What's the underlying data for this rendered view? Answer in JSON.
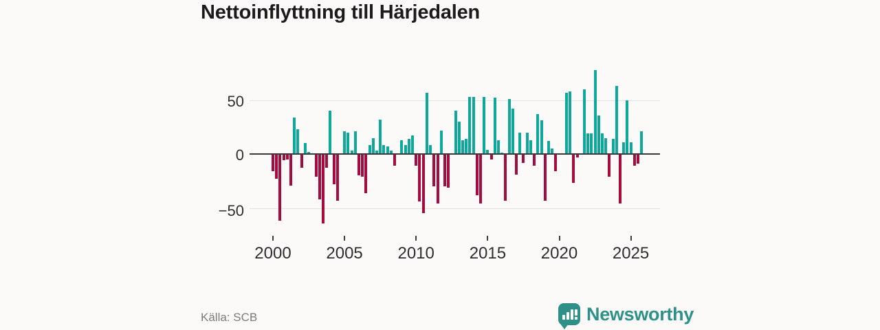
{
  "title": "Nettoinflyttning till Härjedalen",
  "source": "Källa: SCB",
  "logo": {
    "text": "Newsworthy",
    "icon": "bar-chart-speech-bubble-icon"
  },
  "colors": {
    "positive": "#0ca89c",
    "negative": "#a60b3f",
    "axis": "#3a3a3a",
    "grid": "#e4e2df",
    "background": "#fbfaf8",
    "logo": "#2d9089"
  },
  "chart_data": {
    "type": "bar",
    "title": "Nettoinflyttning till Härjedalen",
    "xlabel": "",
    "ylabel": "",
    "x_start": "2000Q1",
    "x_freq": "quarterly",
    "xticks": [
      "2000",
      "2005",
      "2010",
      "2015",
      "2020",
      "2025"
    ],
    "yticks": [
      "50",
      "0",
      "−50"
    ],
    "ytick_values": [
      50,
      0,
      -50
    ],
    "ylim": [
      -70,
      85
    ],
    "grid": "horizontal",
    "legend": "none",
    "series_note": "positive bars teal, negative bars crimson",
    "values": [
      -16,
      -23,
      -62,
      -6,
      -5,
      -29,
      34,
      23,
      -13,
      10,
      2,
      0,
      -21,
      -42,
      -64,
      -13,
      40,
      -28,
      -43,
      0,
      21,
      20,
      3,
      21,
      -20,
      -21,
      -36,
      8,
      15,
      3,
      32,
      8,
      7,
      3,
      -11,
      0,
      13,
      8,
      14,
      17,
      -11,
      -44,
      -55,
      57,
      8,
      -30,
      -46,
      22,
      -30,
      -31,
      0,
      40,
      30,
      13,
      14,
      53,
      53,
      -38,
      -46,
      53,
      4,
      -5,
      52,
      13,
      1,
      -43,
      51,
      42,
      -19,
      20,
      -8,
      20,
      13,
      -11,
      37,
      31,
      -43,
      12,
      5,
      -16,
      0,
      0,
      57,
      58,
      -27,
      -3,
      0,
      60,
      19,
      19,
      78,
      36,
      19,
      15,
      -21,
      14,
      63,
      -46,
      11,
      50,
      11,
      -11,
      -9,
      21
    ]
  }
}
